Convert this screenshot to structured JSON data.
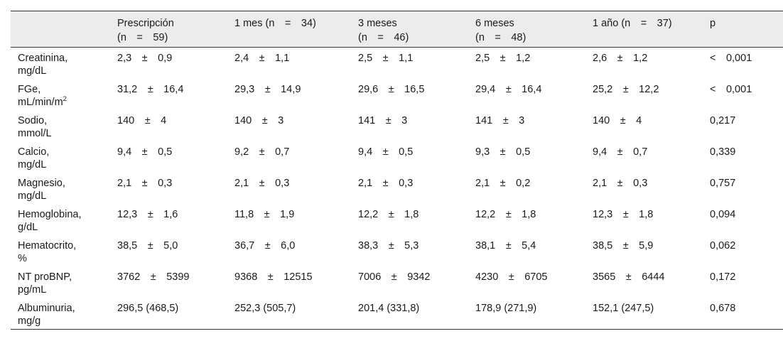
{
  "table": {
    "headers": [
      "",
      "Prescripción\n(n = 59)",
      "1 mes (n = 34)",
      "3 meses\n(n = 46)",
      "6 meses\n(n = 48)",
      "1 año (n = 37)",
      "p"
    ],
    "rows": [
      {
        "label": "Creatinina,\nmg/dL",
        "cells": [
          "2,3 ± 0,9",
          "2,4 ± 1,1",
          "2,5 ± 1,1",
          "2,5 ± 1,2",
          "2,6 ± 1,2",
          "< 0,001"
        ]
      },
      {
        "label": "FGe,\nmL/min/m",
        "label_sup": "2",
        "cells": [
          "31,2 ± 16,4",
          "29,3 ± 14,9",
          "29,6 ± 16,5",
          "29,4 ± 16,4",
          "25,2 ± 12,2",
          "< 0,001"
        ]
      },
      {
        "label": "Sodio,\nmmol/L",
        "cells": [
          "140 ± 4",
          "140 ± 3",
          "141 ± 3",
          "141 ± 3",
          "140 ± 4",
          "0,217"
        ]
      },
      {
        "label": "Calcio,\nmg/dL",
        "cells": [
          "9,4 ± 0,5",
          "9,2 ± 0,7",
          "9,4 ± 0,5",
          "9,3 ± 0,5",
          "9,4 ± 0,7",
          "0,339"
        ]
      },
      {
        "label": "Magnesio,\nmg/dL",
        "cells": [
          "2,1 ± 0,3",
          "2,1 ± 0,3",
          "2,1 ± 0,3",
          "2,1 ± 0,2",
          "2,1 ± 0,3",
          "0,757"
        ]
      },
      {
        "label": "Hemoglobina,\ng/dL",
        "cells": [
          "12,3 ± 1,6",
          "11,8 ± 1,9",
          "12,2 ± 1,8",
          "12,2 ± 1,8",
          "12,3 ± 1,8",
          "0,094"
        ]
      },
      {
        "label": "Hematocrito,\n%",
        "cells": [
          "38,5 ± 5,0",
          "36,7 ± 6,0",
          "38,3 ± 5,3",
          "38,1 ± 5,4",
          "38,5 ± 5,9",
          "0,062"
        ]
      },
      {
        "label": "NT proBNP,\npg/mL",
        "cells": [
          "3762 ± 5399",
          "9368 ± 12515",
          "7006 ± 9342",
          "4230 ± 6705",
          "3565 ± 6444",
          "0,172"
        ]
      },
      {
        "label": "Albuminuria,\nmg/g",
        "cells": [
          "296,5 (468,5)",
          "252,3 (505,7)",
          "201,4 (331,8)",
          "178,9 (271,9)",
          "152,1 (247,5)",
          "0,678"
        ]
      }
    ]
  }
}
